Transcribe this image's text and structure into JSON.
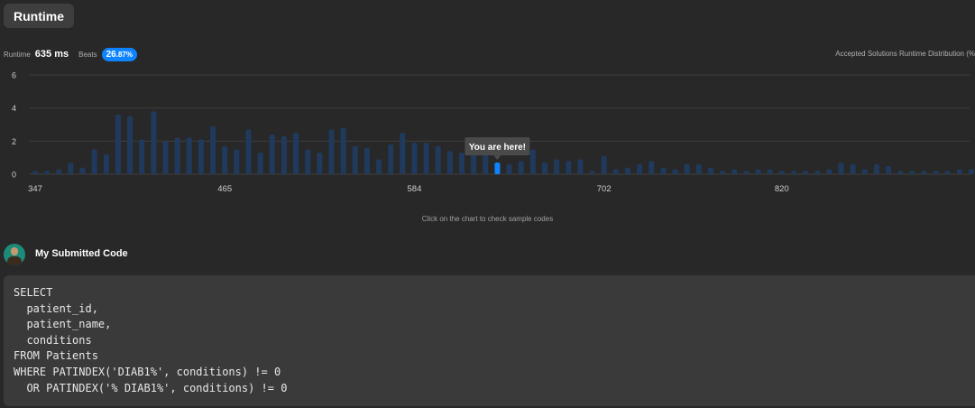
{
  "header": {
    "tab_label": "Runtime"
  },
  "stats": {
    "runtime_label": "Runtime",
    "runtime_value": "635",
    "runtime_unit": "ms",
    "beats_label": "Beats",
    "beats_int": "26",
    "beats_frac": ".87%"
  },
  "distribution_label": "Accepted Solutions Runtime Distribution (%",
  "chart_data": {
    "type": "bar",
    "x_ticks": [
      "347",
      "465",
      "584",
      "702",
      "820"
    ],
    "y_ticks": [
      "0",
      "2",
      "4",
      "6"
    ],
    "ylim": [
      0,
      6
    ],
    "grid": true,
    "values": [
      0.2,
      0.2,
      0.3,
      0.7,
      0.4,
      1.5,
      1.2,
      3.6,
      3.5,
      2.1,
      3.8,
      2.0,
      2.2,
      2.2,
      2.1,
      2.9,
      1.7,
      1.5,
      2.7,
      1.3,
      2.4,
      2.3,
      2.5,
      1.5,
      1.3,
      2.7,
      2.8,
      1.7,
      1.6,
      0.9,
      1.8,
      2.5,
      1.9,
      1.9,
      1.7,
      1.4,
      1.3,
      1.4,
      1.4,
      0.7,
      0.6,
      0.8,
      1.5,
      0.7,
      0.9,
      0.8,
      0.9,
      0.2,
      1.1,
      0.3,
      0.4,
      0.6,
      0.8,
      0.4,
      0.3,
      0.6,
      0.6,
      0.4,
      0.2,
      0.3,
      0.2,
      0.3,
      0.3,
      0.2,
      0.2,
      0.2,
      0.2,
      0.3,
      0.7,
      0.6,
      0.3,
      0.6,
      0.5,
      0.2,
      0.2,
      0.2,
      0.2,
      0.2,
      0.3,
      0.3
    ],
    "highlight_index": 39,
    "tooltip": "You are here!",
    "colors": {
      "bar": "#1f3a5c",
      "highlight": "#0d84ff",
      "grid": "#3e3e3e",
      "axis_text": "#cfcfcf",
      "tooltip_bg": "#4a4a4a"
    }
  },
  "hint": "Click on the chart to check sample codes",
  "submission": {
    "title": "My Submitted Code",
    "code": "SELECT\n  patient_id,\n  patient_name,\n  conditions\nFROM Patients\nWHERE PATINDEX('DIAB1%', conditions) != 0\n  OR PATINDEX('% DIAB1%', conditions) != 0"
  }
}
